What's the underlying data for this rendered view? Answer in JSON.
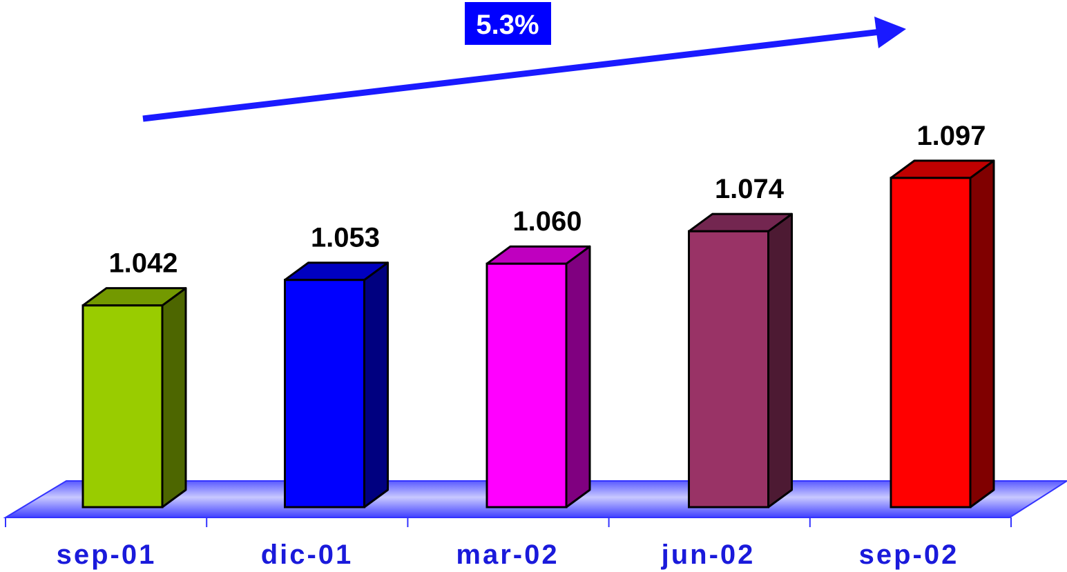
{
  "chart_data": {
    "type": "bar",
    "categories": [
      "sep-01",
      "dic-01",
      "mar-02",
      "jun-02",
      "sep-02"
    ],
    "values": [
      1042,
      1053,
      1060,
      1074,
      1097
    ],
    "value_labels": [
      "1.042",
      "1.053",
      "1.060",
      "1.074",
      "1.097"
    ],
    "colors": [
      {
        "front": "#99cc00",
        "top": "#739900",
        "side": "#4d6600"
      },
      {
        "front": "#0000ff",
        "top": "#0000c0",
        "side": "#000080"
      },
      {
        "front": "#ff00ff",
        "top": "#bf00bf",
        "side": "#800080"
      },
      {
        "front": "#993366",
        "top": "#732650",
        "side": "#4d1a33"
      },
      {
        "front": "#ff0000",
        "top": "#bf0000",
        "side": "#800000"
      }
    ],
    "annotation": {
      "text": "5.3%",
      "background": "#0000ff"
    },
    "grid": false,
    "legend": "none",
    "style": "3d-column"
  }
}
